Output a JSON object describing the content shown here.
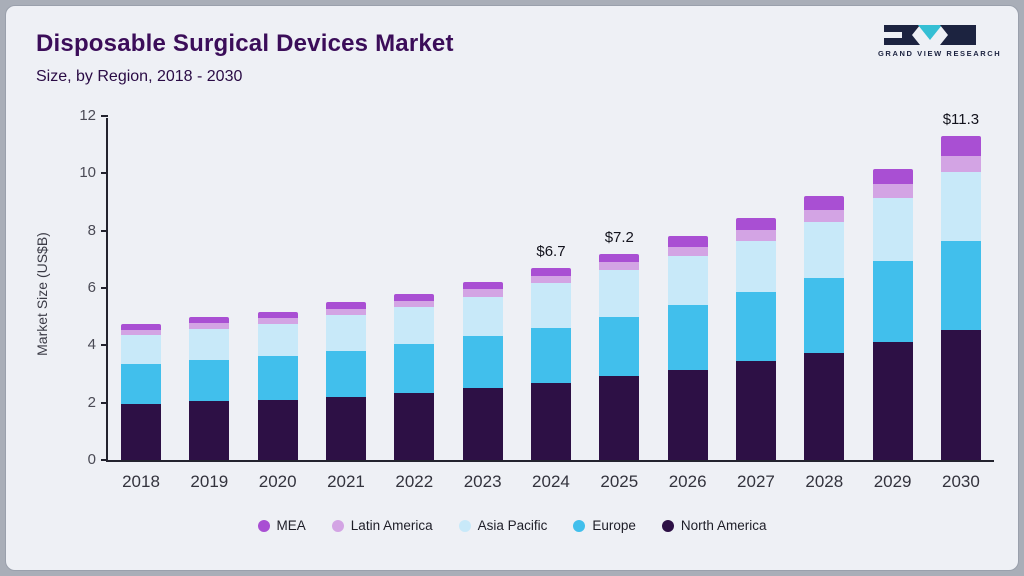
{
  "header": {
    "title": "Disposable Surgical Devices Market",
    "subtitle": "Size, by Region, 2018 - 2030",
    "logo_text": "GRAND VIEW RESEARCH"
  },
  "colors": {
    "mea": "#a94fd3",
    "latin_america": "#d3a4e4",
    "asia_pacific": "#c8e9f9",
    "europe": "#41bfec",
    "north_america": "#2d1045",
    "logo_dark": "#1c2340",
    "logo_teal": "#35bfd4"
  },
  "chart_data": {
    "type": "bar",
    "stacked": true,
    "title": "Disposable Surgical Devices Market Size, by Region, 2018 - 2030",
    "xlabel": "",
    "ylabel": "Market Size (US$B)",
    "ylim": [
      0,
      12
    ],
    "yticks": [
      0,
      2,
      4,
      6,
      8,
      10,
      12
    ],
    "grid": false,
    "legend_position": "bottom",
    "categories": [
      "2018",
      "2019",
      "2020",
      "2021",
      "2022",
      "2023",
      "2024",
      "2025",
      "2026",
      "2027",
      "2028",
      "2029",
      "2030"
    ],
    "series": [
      {
        "name": "North America",
        "color": "#2d1045",
        "values": [
          1.95,
          2.05,
          2.1,
          2.2,
          2.35,
          2.52,
          2.7,
          2.92,
          3.15,
          3.45,
          3.75,
          4.1,
          4.55
        ]
      },
      {
        "name": "Europe",
        "color": "#41bfec",
        "values": [
          1.4,
          1.45,
          1.52,
          1.6,
          1.7,
          1.8,
          1.92,
          2.08,
          2.25,
          2.4,
          2.6,
          2.85,
          3.1
        ]
      },
      {
        "name": "Asia Pacific",
        "color": "#c8e9f9",
        "values": [
          1.0,
          1.08,
          1.13,
          1.25,
          1.28,
          1.38,
          1.55,
          1.62,
          1.72,
          1.8,
          1.95,
          2.2,
          2.4
        ]
      },
      {
        "name": "Latin America",
        "color": "#d3a4e4",
        "values": [
          0.2,
          0.2,
          0.2,
          0.22,
          0.23,
          0.25,
          0.26,
          0.28,
          0.31,
          0.36,
          0.42,
          0.47,
          0.55
        ]
      },
      {
        "name": "MEA",
        "color": "#a94fd3",
        "values": [
          0.2,
          0.22,
          0.2,
          0.23,
          0.24,
          0.25,
          0.27,
          0.3,
          0.37,
          0.44,
          0.48,
          0.53,
          0.7
        ]
      }
    ],
    "totals": [
      4.75,
      5.0,
      5.15,
      5.5,
      5.8,
      6.2,
      6.7,
      7.2,
      7.8,
      8.45,
      9.2,
      10.15,
      11.3
    ],
    "annotations": {
      "2024": "$6.7",
      "2025": "$7.2",
      "2030": "$11.3"
    },
    "legend": [
      {
        "label": "MEA",
        "color": "#a94fd3"
      },
      {
        "label": "Latin America",
        "color": "#d3a4e4"
      },
      {
        "label": "Asia Pacific",
        "color": "#c8e9f9"
      },
      {
        "label": "Europe",
        "color": "#41bfec"
      },
      {
        "label": "North America",
        "color": "#2d1045"
      }
    ]
  }
}
